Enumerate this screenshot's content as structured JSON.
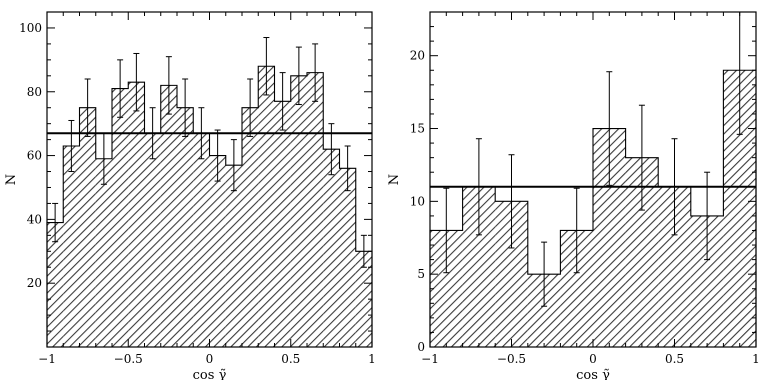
{
  "chart_data": [
    {
      "type": "bar",
      "xlabel": "cos γ̃",
      "ylabel": "N",
      "xlim": [
        -1,
        1
      ],
      "ylim": [
        0,
        105
      ],
      "xticks": [
        "−1",
        "−0.5",
        "0",
        "0.5",
        "1"
      ],
      "yticks": [
        "20",
        "40",
        "60",
        "80",
        "100"
      ],
      "reference_line": 67,
      "bin_width": 0.1,
      "bin_left_edges": [
        -1.0,
        -0.9,
        -0.8,
        -0.7,
        -0.6,
        -0.5,
        -0.4,
        -0.3,
        -0.2,
        -0.1,
        0.0,
        0.1,
        0.2,
        0.3,
        0.4,
        0.5,
        0.6,
        0.7,
        0.8,
        0.9
      ],
      "values": [
        39,
        63,
        75,
        59,
        81,
        83,
        67,
        82,
        75,
        67,
        60,
        57,
        75,
        88,
        77,
        85,
        86,
        62,
        56,
        30
      ],
      "errors": [
        6,
        8,
        9,
        8,
        9,
        9,
        8,
        9,
        9,
        8,
        8,
        8,
        9,
        9,
        9,
        9,
        9,
        8,
        7,
        5
      ],
      "fill": "diagonal hatch",
      "grid": false
    },
    {
      "type": "bar",
      "xlabel": "cos γ̃",
      "ylabel": "N",
      "xlim": [
        -1,
        1
      ],
      "ylim": [
        0,
        23
      ],
      "xticks": [
        "−1",
        "−0.5",
        "0",
        "0.5",
        "1"
      ],
      "yticks": [
        "0",
        "5",
        "10",
        "15",
        "20"
      ],
      "reference_line": 11,
      "bin_width": 0.2,
      "bin_left_edges": [
        -1.0,
        -0.8,
        -0.6,
        -0.4,
        -0.2,
        0.0,
        0.2,
        0.4,
        0.6,
        0.8
      ],
      "values": [
        8,
        11,
        10,
        5,
        8,
        15,
        13,
        11,
        9,
        19
      ],
      "errors": [
        2.9,
        3.3,
        3.2,
        2.2,
        2.9,
        3.9,
        3.6,
        3.3,
        3.0,
        4.4
      ],
      "fill": "diagonal hatch",
      "grid": false
    }
  ]
}
